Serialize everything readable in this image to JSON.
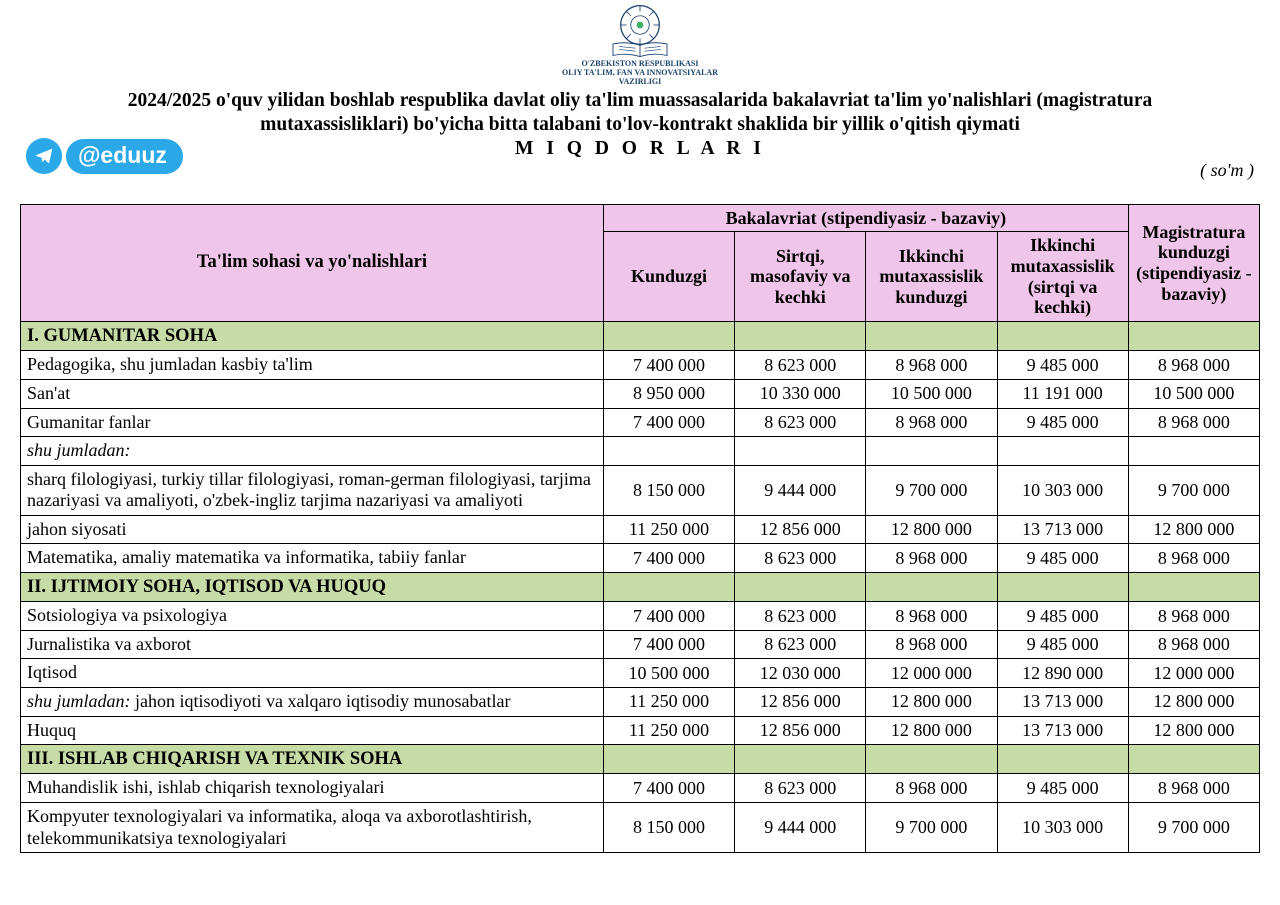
{
  "ministry": {
    "line1": "O'ZBEKISTON RESPUBLIKASI",
    "line2": "OLIY TA'LIM, FAN VA INNOVATSIYALAR",
    "line3": "VAZIRLIGI"
  },
  "title": {
    "line1": "2024/2025 o'quv yilidan boshlab respublika davlat oliy ta'lim muassasalarida bakalavriat ta'lim yo'nalishlari (magistratura",
    "line2": "mutaxassisliklari) bo'yicha bitta talabani to'lov-kontrakt shaklida bir yillik o'qitish qiymati",
    "line3": "M I Q D O R L A R I"
  },
  "telegram_handle": "@eduuz",
  "currency_note": "( so'm )",
  "colors": {
    "header_bg": "#efc5e9",
    "section_bg": "#c6dba5",
    "border": "#000000",
    "telegram": "#2ba8e8",
    "ministry_text": "#1a446e"
  },
  "table": {
    "header": {
      "col_name": "Ta'lim sohasi va yo'nalishlari",
      "group_bak": "Bakalavriat (stipendiyasiz - bazaviy)",
      "col_kunduzgi": "Kunduzgi",
      "col_sirtqi": "Sirtqi, masofaviy va kechki",
      "col_ikkinchi_k": "Ikkinchi mutaxassislik kunduzgi",
      "col_ikkinchi_s": "Ikkinchi mutaxassislik (sirtqi va kechki)",
      "col_mag": "Magistratura kunduzgi (stipendiyasiz - bazaviy)"
    },
    "rows": [
      {
        "type": "section",
        "name": "I. GUMANITAR SOHA"
      },
      {
        "type": "data",
        "name": "Pedagogika, shu jumladan kasbiy ta'lim",
        "v": [
          "7 400 000",
          "8 623 000",
          "8 968 000",
          "9 485 000",
          "8 968 000"
        ]
      },
      {
        "type": "data",
        "name": "San'at",
        "v": [
          "8 950 000",
          "10 330 000",
          "10 500 000",
          "11 191 000",
          "10 500 000"
        ]
      },
      {
        "type": "data",
        "name": "Gumanitar fanlar",
        "v": [
          "7 400 000",
          "8 623 000",
          "8 968 000",
          "9 485 000",
          "8 968 000"
        ]
      },
      {
        "type": "subnote",
        "name": "shu jumladan:",
        "v": [
          "",
          "",
          "",
          "",
          ""
        ]
      },
      {
        "type": "data",
        "name": "sharq filologiyasi, turkiy tillar filologiyasi, roman-german filologiyasi, tarjima nazariyasi va amaliyoti, o'zbek-ingliz tarjima nazariyasi va amaliyoti",
        "v": [
          "8 150 000",
          "9 444 000",
          "9 700 000",
          "10 303 000",
          "9 700 000"
        ]
      },
      {
        "type": "data",
        "name": "jahon siyosati",
        "v": [
          "11 250 000",
          "12 856 000",
          "12 800 000",
          "13 713 000",
          "12 800 000"
        ]
      },
      {
        "type": "data",
        "name": "Matematika, amaliy matematika va informatika, tabiiy fanlar",
        "v": [
          "7 400 000",
          "8 623 000",
          "8 968 000",
          "9 485 000",
          "8 968 000"
        ]
      },
      {
        "type": "section",
        "name": "II. IJTIMOIY SOHA, IQTISOD VA HUQUQ"
      },
      {
        "type": "data",
        "name": "Sotsiologiya va psixologiya",
        "v": [
          "7 400 000",
          "8 623 000",
          "8 968 000",
          "9 485 000",
          "8 968 000"
        ]
      },
      {
        "type": "data",
        "name": "Jurnalistika va axborot",
        "v": [
          "7 400 000",
          "8 623 000",
          "8 968 000",
          "9 485 000",
          "8 968 000"
        ]
      },
      {
        "type": "data",
        "name": "Iqtisod",
        "v": [
          "10 500 000",
          "12 030 000",
          "12 000 000",
          "12 890 000",
          "12 000 000"
        ]
      },
      {
        "type": "sub-incl",
        "lead": "shu jumladan:",
        "rest": "  jahon iqtisodiyoti va xalqaro iqtisodiy munosabatlar",
        "v": [
          "11 250 000",
          "12 856 000",
          "12 800 000",
          "13 713 000",
          "12 800 000"
        ]
      },
      {
        "type": "data",
        "name": "Huquq",
        "v": [
          "11 250 000",
          "12 856 000",
          "12 800 000",
          "13 713 000",
          "12 800 000"
        ]
      },
      {
        "type": "section",
        "name": "III. ISHLAB CHIQARISH VA TEXNIK SOHA"
      },
      {
        "type": "data",
        "name": "Muhandislik ishi, ishlab chiqarish texnologiyalari",
        "v": [
          "7 400 000",
          "8 623 000",
          "8 968 000",
          "9 485 000",
          "8 968 000"
        ]
      },
      {
        "type": "data",
        "name": "Kompyuter texnologiyalari va  informatika, aloqa va axborotlashtirish, telekommunikatsiya texnologiyalari",
        "v": [
          "8 150 000",
          "9 444 000",
          "9 700 000",
          "10 303 000",
          "9 700 000"
        ]
      }
    ]
  }
}
